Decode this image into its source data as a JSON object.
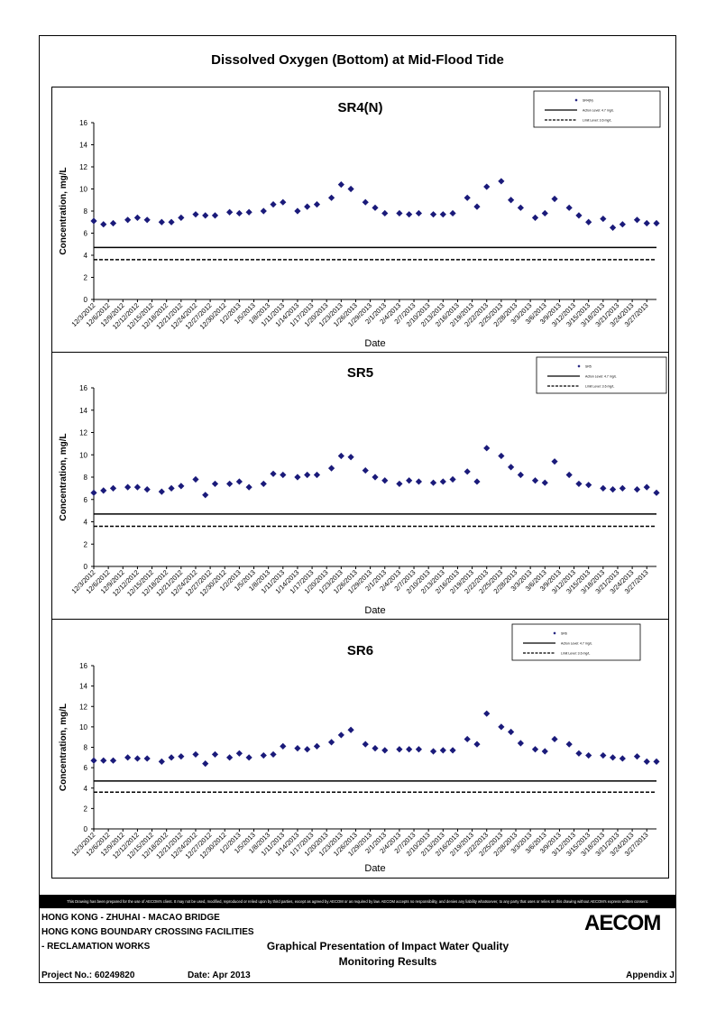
{
  "page_title": "Dissolved Oxygen (Bottom) at Mid-Flood Tide",
  "chart_data": [
    {
      "type": "scatter",
      "title": "SR4(N)",
      "xlabel": "Date",
      "ylabel": "Concentration, mg/L",
      "ylim": [
        0,
        16
      ],
      "yticks": [
        0,
        2,
        4,
        6,
        8,
        10,
        12,
        14,
        16
      ],
      "xticks": [
        "12/3/2012",
        "12/6/2012",
        "12/9/2012",
        "12/12/2012",
        "12/15/2012",
        "12/18/2012",
        "12/21/2012",
        "12/24/2012",
        "12/27/2012",
        "12/30/2012",
        "1/2/2013",
        "1/5/2013",
        "1/8/2013",
        "1/11/2013",
        "1/14/2013",
        "1/17/2013",
        "1/20/2013",
        "1/23/2013",
        "1/26/2013",
        "1/29/2013",
        "2/1/2013",
        "2/4/2013",
        "2/7/2013",
        "2/10/2013",
        "2/13/2013",
        "2/16/2013",
        "2/19/2013",
        "2/22/2013",
        "2/25/2013",
        "2/28/2013",
        "3/3/2013",
        "3/6/2013",
        "3/9/2013",
        "3/12/2013",
        "3/15/2013",
        "3/18/2013",
        "3/21/2013",
        "3/24/2013",
        "3/27/2013"
      ],
      "x": [
        "12/3/2012",
        "12/5/2012",
        "12/7/2012",
        "12/10/2012",
        "12/12/2012",
        "12/14/2012",
        "12/17/2012",
        "12/19/2012",
        "12/21/2012",
        "12/24/2012",
        "12/26/2012",
        "12/28/2012",
        "12/31/2012",
        "1/2/2013",
        "1/4/2013",
        "1/7/2013",
        "1/9/2013",
        "1/11/2013",
        "1/14/2013",
        "1/16/2013",
        "1/18/2013",
        "1/21/2013",
        "1/23/2013",
        "1/25/2013",
        "1/28/2013",
        "1/30/2013",
        "2/1/2013",
        "2/4/2013",
        "2/6/2013",
        "2/8/2013",
        "2/11/2013",
        "2/13/2013",
        "2/15/2013",
        "2/18/2013",
        "2/20/2013",
        "2/22/2013",
        "2/25/2013",
        "2/27/2013",
        "3/1/2013",
        "3/4/2013",
        "3/6/2013",
        "3/8/2013",
        "3/11/2013",
        "3/13/2013",
        "3/15/2013",
        "3/18/2013",
        "3/20/2013",
        "3/22/2013",
        "3/25/2013",
        "3/27/2013",
        "3/29/2013"
      ],
      "series": [
        {
          "name": "SR4(N)",
          "marker": "diamond",
          "color": "#1a1a7a",
          "values": [
            7.1,
            6.8,
            6.9,
            7.2,
            7.4,
            7.2,
            7.0,
            7.0,
            7.4,
            7.7,
            7.6,
            7.6,
            7.9,
            7.8,
            7.9,
            8.0,
            8.6,
            8.8,
            8.0,
            8.4,
            8.6,
            9.2,
            10.4,
            10.0,
            8.8,
            8.3,
            7.8,
            7.8,
            7.7,
            7.8,
            7.7,
            7.7,
            7.8,
            9.2,
            8.4,
            10.2,
            10.7,
            9.0,
            8.3,
            7.4,
            7.8,
            9.1,
            8.3,
            7.6,
            7.0,
            7.3,
            6.5,
            6.8,
            7.2,
            6.9,
            6.9
          ]
        }
      ],
      "reference_lines": [
        {
          "name": "Action Level: 4.7 mg/L",
          "value": 4.7,
          "style": "solid"
        },
        {
          "name": "Limit Level: 3.6 mg/L",
          "value": 3.6,
          "style": "dashed"
        }
      ],
      "legend_position": "top-right",
      "grid": false
    },
    {
      "type": "scatter",
      "title": "SR5",
      "xlabel": "Date",
      "ylabel": "Concentration, mg/L",
      "ylim": [
        0,
        16
      ],
      "yticks": [
        0,
        2,
        4,
        6,
        8,
        10,
        12,
        14,
        16
      ],
      "xticks": [
        "12/3/2012",
        "12/6/2012",
        "12/9/2012",
        "12/12/2012",
        "12/15/2012",
        "12/18/2012",
        "12/21/2012",
        "12/24/2012",
        "12/27/2012",
        "12/30/2012",
        "1/2/2013",
        "1/5/2013",
        "1/8/2013",
        "1/11/2013",
        "1/14/2013",
        "1/17/2013",
        "1/20/2013",
        "1/23/2013",
        "1/26/2013",
        "1/29/2013",
        "2/1/2013",
        "2/4/2013",
        "2/7/2013",
        "2/10/2013",
        "2/13/2013",
        "2/16/2013",
        "2/19/2013",
        "2/22/2013",
        "2/25/2013",
        "2/28/2013",
        "3/3/2013",
        "3/6/2013",
        "3/9/2013",
        "3/12/2013",
        "3/15/2013",
        "3/18/2013",
        "3/21/2013",
        "3/24/2013",
        "3/27/2013"
      ],
      "x": [
        "12/3/2012",
        "12/5/2012",
        "12/7/2012",
        "12/10/2012",
        "12/12/2012",
        "12/14/2012",
        "12/17/2012",
        "12/19/2012",
        "12/21/2012",
        "12/24/2012",
        "12/26/2012",
        "12/28/2012",
        "12/31/2012",
        "1/2/2013",
        "1/4/2013",
        "1/7/2013",
        "1/9/2013",
        "1/11/2013",
        "1/14/2013",
        "1/16/2013",
        "1/18/2013",
        "1/21/2013",
        "1/23/2013",
        "1/25/2013",
        "1/28/2013",
        "1/30/2013",
        "2/1/2013",
        "2/4/2013",
        "2/6/2013",
        "2/8/2013",
        "2/11/2013",
        "2/13/2013",
        "2/15/2013",
        "2/18/2013",
        "2/20/2013",
        "2/22/2013",
        "2/25/2013",
        "2/27/2013",
        "3/1/2013",
        "3/4/2013",
        "3/6/2013",
        "3/8/2013",
        "3/11/2013",
        "3/13/2013",
        "3/15/2013",
        "3/18/2013",
        "3/20/2013",
        "3/22/2013",
        "3/25/2013",
        "3/27/2013",
        "3/29/2013"
      ],
      "series": [
        {
          "name": "SR5",
          "marker": "diamond",
          "color": "#1a1a7a",
          "values": [
            6.6,
            6.8,
            7.0,
            7.1,
            7.1,
            6.9,
            6.7,
            7.0,
            7.2,
            7.8,
            6.4,
            7.4,
            7.4,
            7.6,
            7.1,
            7.4,
            8.3,
            8.2,
            8.0,
            8.2,
            8.2,
            8.8,
            9.9,
            9.8,
            8.6,
            8.0,
            7.7,
            7.4,
            7.7,
            7.6,
            7.5,
            7.6,
            7.8,
            8.5,
            7.6,
            10.6,
            9.9,
            8.9,
            8.2,
            7.7,
            7.5,
            9.4,
            8.2,
            7.4,
            7.3,
            7.0,
            6.9,
            7.0,
            6.9,
            7.1,
            6.6
          ]
        }
      ],
      "reference_lines": [
        {
          "name": "Action Level: 4.7 mg/L",
          "value": 4.7,
          "style": "solid"
        },
        {
          "name": "Limit Level: 3.6 mg/L",
          "value": 3.6,
          "style": "dashed"
        }
      ],
      "legend_position": "top-right",
      "grid": false
    },
    {
      "type": "scatter",
      "title": "SR6",
      "xlabel": "Date",
      "ylabel": "Concentration, mg/L",
      "ylim": [
        0,
        16
      ],
      "yticks": [
        0,
        2,
        4,
        6,
        8,
        10,
        12,
        14,
        16
      ],
      "xticks": [
        "12/3/2012",
        "12/6/2012",
        "12/9/2012",
        "12/12/2012",
        "12/15/2012",
        "12/18/2012",
        "12/21/2012",
        "12/24/2012",
        "12/27/2012",
        "12/30/2012",
        "1/2/2013",
        "1/5/2013",
        "1/8/2013",
        "1/11/2013",
        "1/14/2013",
        "1/17/2013",
        "1/20/2013",
        "1/23/2013",
        "1/26/2013",
        "1/29/2013",
        "2/1/2013",
        "2/4/2013",
        "2/7/2013",
        "2/10/2013",
        "2/13/2013",
        "2/16/2013",
        "2/19/2013",
        "2/22/2013",
        "2/25/2013",
        "2/28/2013",
        "3/3/2013",
        "3/6/2013",
        "3/9/2013",
        "3/12/2013",
        "3/15/2013",
        "3/18/2013",
        "3/21/2013",
        "3/24/2013",
        "3/27/2013"
      ],
      "x": [
        "12/3/2012",
        "12/5/2012",
        "12/7/2012",
        "12/10/2012",
        "12/12/2012",
        "12/14/2012",
        "12/17/2012",
        "12/19/2012",
        "12/21/2012",
        "12/24/2012",
        "12/26/2012",
        "12/28/2012",
        "12/31/2012",
        "1/2/2013",
        "1/4/2013",
        "1/7/2013",
        "1/9/2013",
        "1/11/2013",
        "1/14/2013",
        "1/16/2013",
        "1/18/2013",
        "1/21/2013",
        "1/23/2013",
        "1/25/2013",
        "1/28/2013",
        "1/30/2013",
        "2/1/2013",
        "2/4/2013",
        "2/6/2013",
        "2/8/2013",
        "2/11/2013",
        "2/13/2013",
        "2/15/2013",
        "2/18/2013",
        "2/20/2013",
        "2/22/2013",
        "2/25/2013",
        "2/27/2013",
        "3/1/2013",
        "3/4/2013",
        "3/6/2013",
        "3/8/2013",
        "3/11/2013",
        "3/13/2013",
        "3/15/2013",
        "3/18/2013",
        "3/20/2013",
        "3/22/2013",
        "3/25/2013",
        "3/27/2013",
        "3/29/2013"
      ],
      "series": [
        {
          "name": "SR6",
          "marker": "diamond",
          "color": "#1a1a7a",
          "values": [
            6.7,
            6.7,
            6.7,
            7.0,
            6.9,
            6.9,
            6.6,
            7.0,
            7.1,
            7.3,
            6.4,
            7.3,
            7.0,
            7.4,
            7.0,
            7.2,
            7.3,
            8.1,
            7.9,
            7.8,
            8.1,
            8.5,
            9.2,
            9.7,
            8.3,
            7.9,
            7.7,
            7.8,
            7.8,
            7.8,
            7.6,
            7.7,
            7.7,
            8.8,
            8.3,
            11.3,
            10.0,
            9.5,
            8.4,
            7.8,
            7.6,
            8.8,
            8.3,
            7.4,
            7.2,
            7.2,
            7.0,
            6.9,
            7.1,
            6.6,
            6.6
          ]
        }
      ],
      "reference_lines": [
        {
          "name": "Action Level: 4.7 mg/L",
          "value": 4.7,
          "style": "solid"
        },
        {
          "name": "Limit Level: 3.6 mg/L",
          "value": 3.6,
          "style": "dashed"
        }
      ],
      "legend_position": "top-right",
      "grid": false
    }
  ],
  "disclaimer": "This Drawing has been prepared for the use of AECOM's client. It may not be used, modified, reproduced or relied upon by third parties, except as agreed by AECOM or as required by law. AECOM accepts no responsibility, and denies any liability whatsoever, to any party that uses or relies on this drawing without AECOM's express written consent.",
  "footer": {
    "line1": "HONG KONG - ZHUHAI - MACAO BRIDGE",
    "line2": "HONG KONG BOUNDARY CROSSING FACILITIES",
    "line3": "- RECLAMATION WORKS",
    "title_line1": "Graphical Presentation of Impact Water Quality",
    "title_line2": "Monitoring Results",
    "project_no": "Project No.: 60249820",
    "date": "Date: Apr 2013",
    "appendix": "Appendix J",
    "logo": "AECOM"
  }
}
